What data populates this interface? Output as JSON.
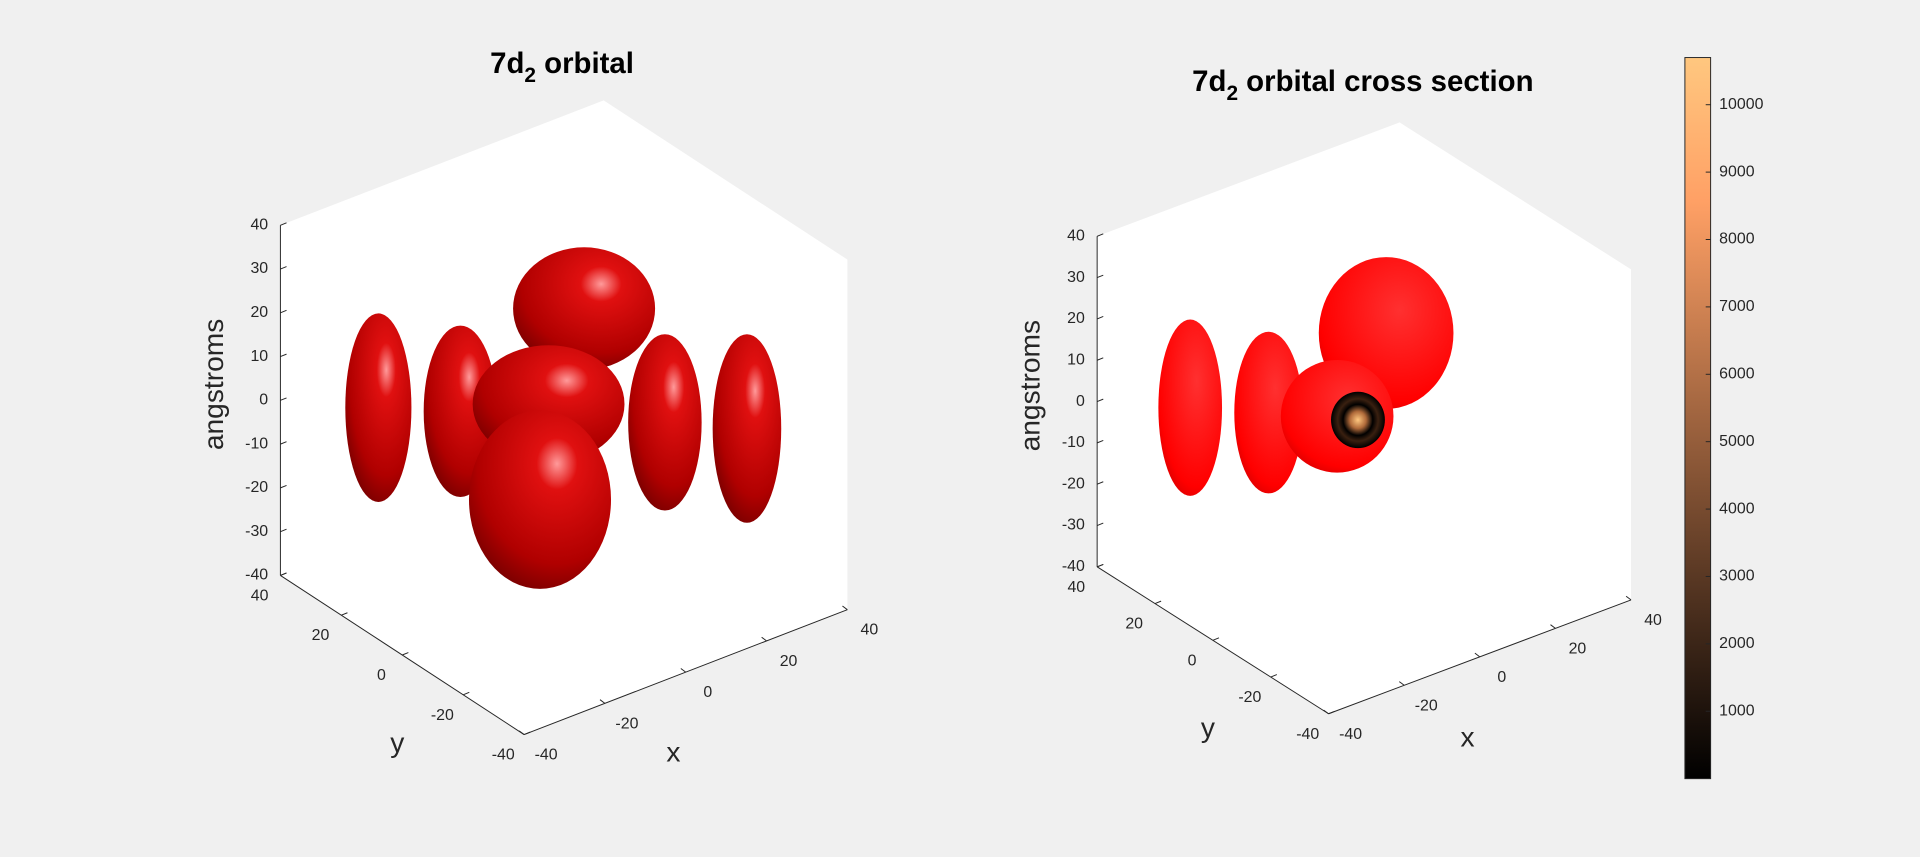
{
  "chart_data": [
    {
      "type": "isosurface",
      "title_parts": [
        "7d",
        "2",
        " orbital"
      ],
      "color": "#ff0000",
      "xlabel": "x",
      "ylabel": "y",
      "zlabel": "angstroms",
      "xlim": [
        -40,
        40
      ],
      "ylim": [
        -40,
        40
      ],
      "zlim": [
        -40,
        40
      ],
      "xticks": [
        -40,
        -20,
        0,
        20,
        40
      ],
      "yticks": [
        -40,
        -20,
        0,
        20,
        40
      ],
      "zticks": [
        -40,
        -30,
        -20,
        -10,
        0,
        10,
        20,
        30,
        40
      ]
    },
    {
      "type": "isosurface",
      "title_parts": [
        "7d",
        "2",
        " orbital cross section"
      ],
      "color": "#ff0000",
      "xlabel": "x",
      "ylabel": "y",
      "zlabel": "angstroms",
      "xlim": [
        -40,
        40
      ],
      "ylim": [
        -40,
        40
      ],
      "zlim": [
        -40,
        40
      ],
      "xticks": [
        -40,
        -20,
        0,
        20,
        40
      ],
      "yticks": [
        -40,
        -20,
        0,
        20,
        40
      ],
      "zticks": [
        -40,
        -30,
        -20,
        -10,
        0,
        10,
        20,
        30,
        40
      ],
      "colorbar": {
        "clim": [
          0,
          10700
        ],
        "ticks": [
          1000,
          2000,
          3000,
          4000,
          5000,
          6000,
          7000,
          8000,
          9000,
          10000
        ]
      }
    }
  ]
}
